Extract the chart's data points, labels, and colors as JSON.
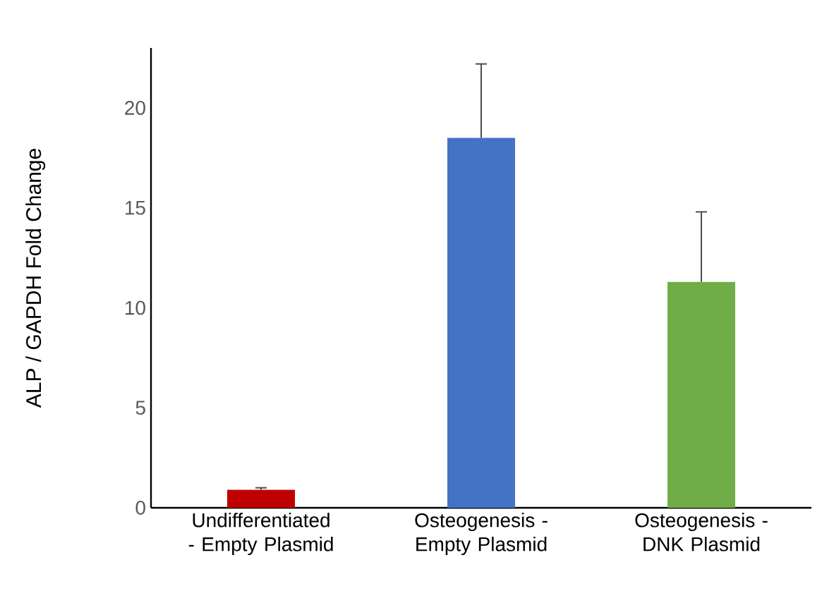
{
  "chart_data": {
    "type": "bar",
    "ylabel": "ALP / GAPDH Fold Change",
    "categories": [
      "Undifferentiated - Empty Plasmid",
      "Osteogenesis - Empty Plasmid",
      "Osteogenesis - DNK Plasmid"
    ],
    "values": [
      0.9,
      18.5,
      11.3
    ],
    "colors": [
      "#c00000",
      "#4472c4",
      "#70ad47"
    ],
    "errors": [
      [
        0.9,
        1.0
      ],
      [
        18.5,
        22.2
      ],
      [
        11.3,
        14.8
      ]
    ],
    "ylim": [
      0,
      23
    ],
    "yticks": [
      0,
      5,
      10,
      15,
      20
    ],
    "grid": false
  }
}
